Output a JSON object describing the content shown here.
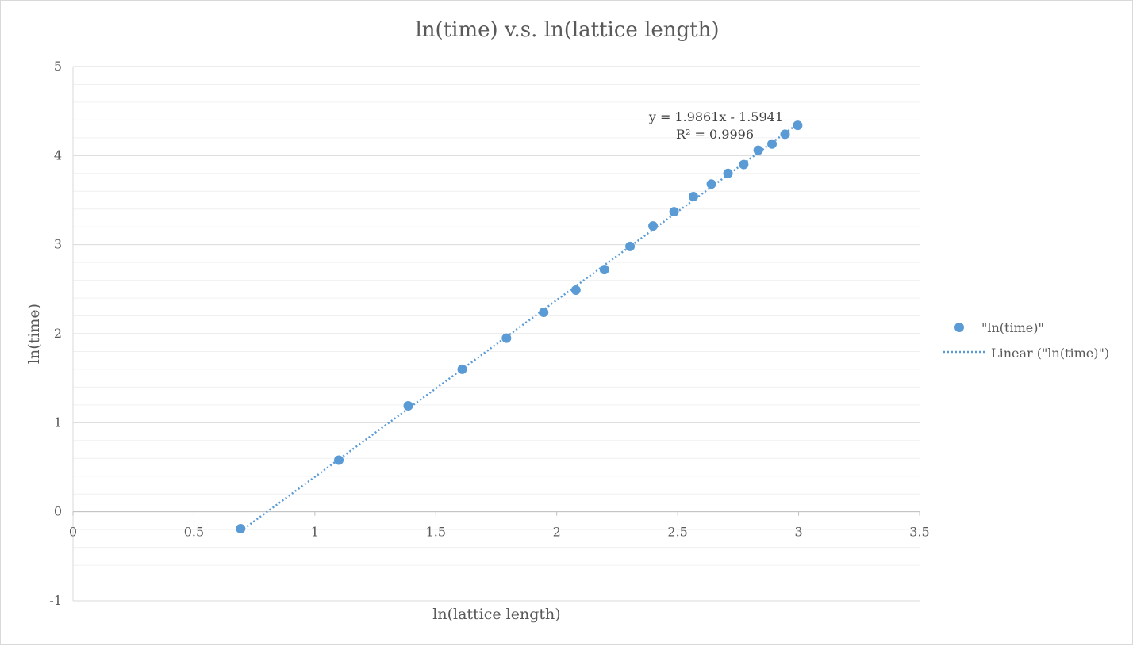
{
  "chart_data": {
    "type": "scatter",
    "title": "ln(time) v.s. ln(lattice length)",
    "xlabel": "ln(lattice length)",
    "ylabel": "ln(time)",
    "xlim": [
      0,
      3.5
    ],
    "ylim": [
      -1,
      5
    ],
    "x_ticks": [
      "0",
      "0.5",
      "1",
      "1.5",
      "2",
      "2.5",
      "3",
      "3.5"
    ],
    "y_ticks": [
      "-1",
      "0",
      "1",
      "2",
      "3",
      "4",
      "5"
    ],
    "grid": {
      "major": true,
      "minor": true
    },
    "legend_position": "right",
    "series": [
      {
        "name": "\"ln(time)\"",
        "color": "#5b9bd5",
        "points": [
          [
            0.693,
            -0.19
          ],
          [
            1.099,
            0.58
          ],
          [
            1.386,
            1.19
          ],
          [
            1.609,
            1.6
          ],
          [
            1.792,
            1.95
          ],
          [
            1.946,
            2.24
          ],
          [
            2.079,
            2.49
          ],
          [
            2.197,
            2.72
          ],
          [
            2.303,
            2.98
          ],
          [
            2.398,
            3.21
          ],
          [
            2.485,
            3.37
          ],
          [
            2.565,
            3.54
          ],
          [
            2.639,
            3.68
          ],
          [
            2.708,
            3.8
          ],
          [
            2.773,
            3.9
          ],
          [
            2.833,
            4.06
          ],
          [
            2.89,
            4.13
          ],
          [
            2.944,
            4.24
          ],
          [
            2.996,
            4.34
          ]
        ]
      }
    ],
    "trendline": {
      "name": "Linear (\"ln(time)\")",
      "type": "linear",
      "slope": 1.9861,
      "intercept": -1.5941,
      "x_range": [
        0.693,
        2.996
      ],
      "color": "#5b9bd5",
      "equation_label": "y = 1.9861x - 1.5941",
      "r2_label": "R² = 0.9996"
    }
  }
}
